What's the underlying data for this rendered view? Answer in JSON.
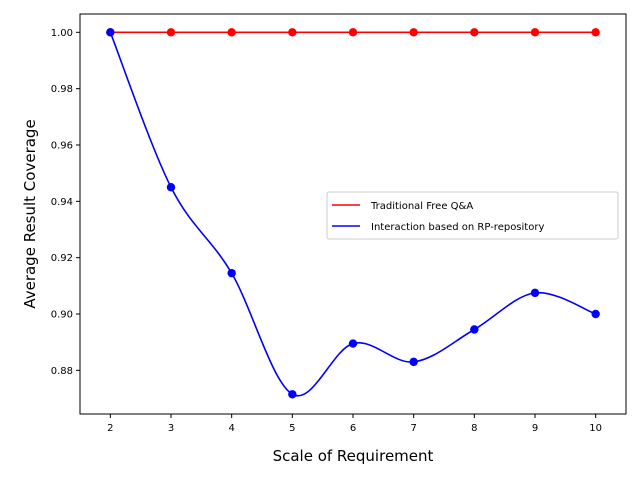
{
  "chart_data": {
    "type": "line",
    "title": "",
    "xlabel": "Scale of Requirement",
    "ylabel": "Average Result Coverage",
    "xlim": [
      1.5,
      10.5
    ],
    "ylim": [
      0.8645,
      1.0065
    ],
    "x_ticks": [
      2,
      3,
      4,
      5,
      6,
      7,
      8,
      9,
      10
    ],
    "y_ticks": [
      0.88,
      0.9,
      0.92,
      0.94,
      0.96,
      0.98,
      1.0
    ],
    "x": [
      2,
      3,
      4,
      5,
      6,
      7,
      8,
      9,
      10
    ],
    "series": [
      {
        "name": "Traditional Free Q&A",
        "color": "#ff0000",
        "values": [
          1.0,
          1.0,
          1.0,
          1.0,
          1.0,
          1.0,
          1.0,
          1.0,
          1.0
        ],
        "smooth": false
      },
      {
        "name": "Interaction based on RP-repository",
        "color": "#0000ff",
        "values": [
          1.0,
          0.945,
          0.9145,
          0.8715,
          0.8895,
          0.883,
          0.8945,
          0.9075,
          0.9
        ],
        "smooth": true
      }
    ],
    "grid": false,
    "legend_position": "center-right"
  }
}
